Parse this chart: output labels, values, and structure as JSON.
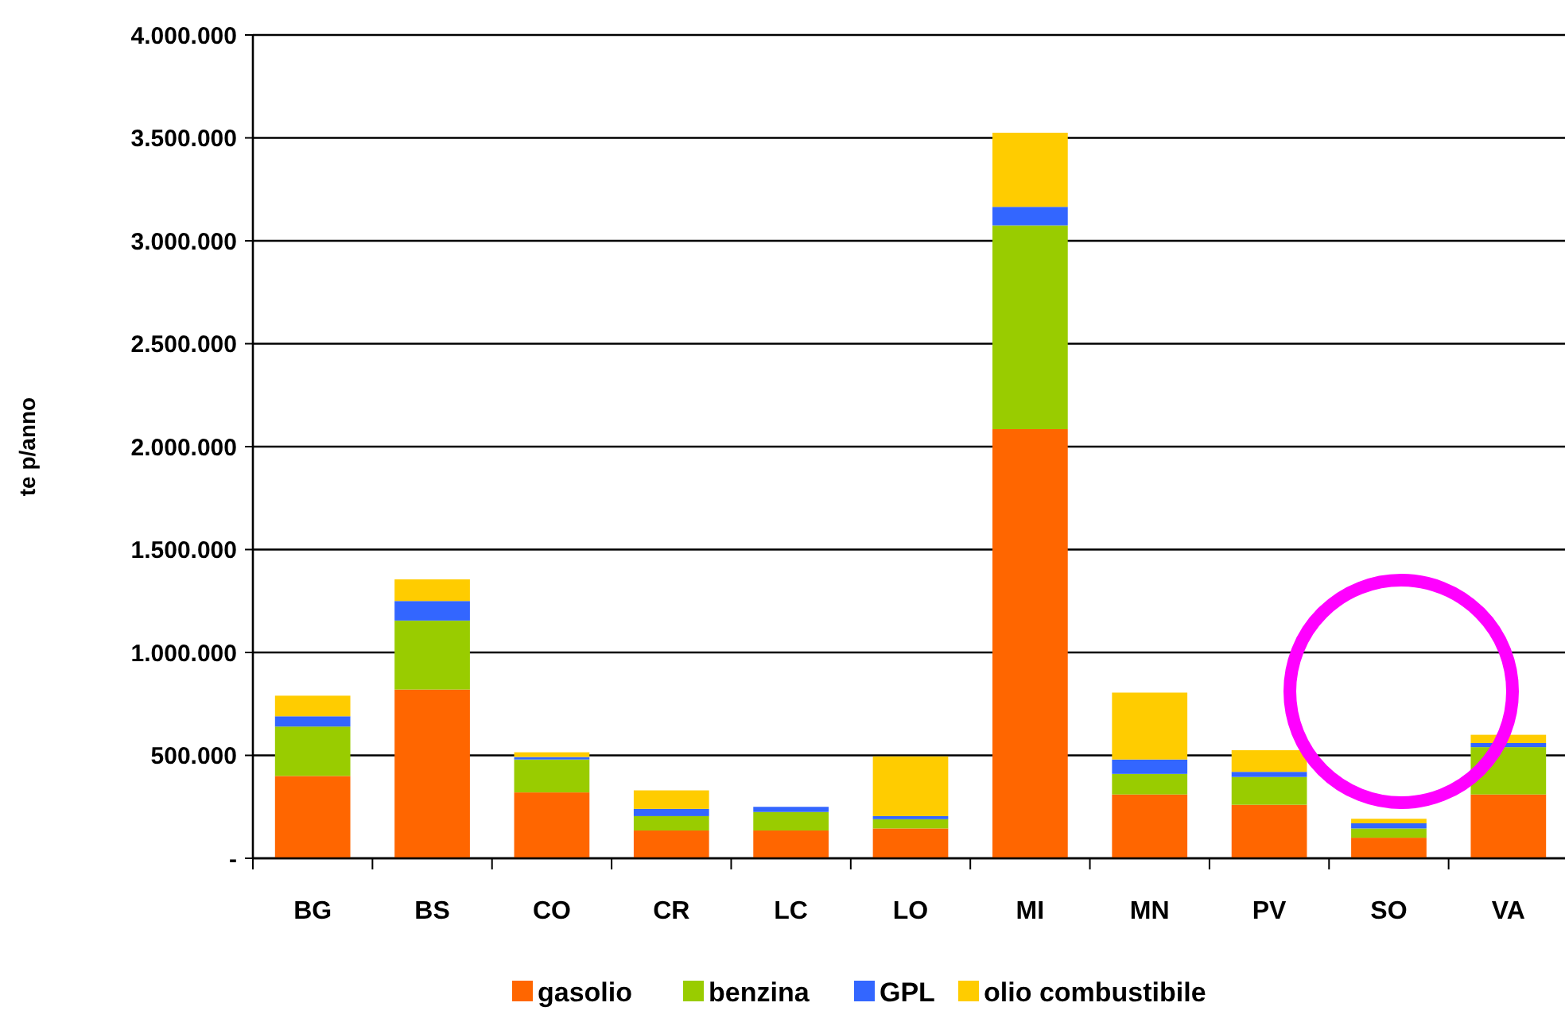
{
  "chart_data": {
    "type": "bar",
    "stacked": true,
    "ylabel": "te p/anno",
    "categories": [
      "BG",
      "BS",
      "CO",
      "CR",
      "LC",
      "LO",
      "MI",
      "MN",
      "PV",
      "SO",
      "VA"
    ],
    "series": [
      {
        "name": "gasolio",
        "color": "#ff6600",
        "values": [
          400000,
          820000,
          320000,
          135000,
          135000,
          145000,
          2085000,
          310000,
          260000,
          100000,
          310000
        ]
      },
      {
        "name": "benzina",
        "color": "#99cc00",
        "values": [
          240000,
          335000,
          160000,
          70000,
          90000,
          45000,
          990000,
          100000,
          135000,
          45000,
          230000
        ]
      },
      {
        "name": "GPL",
        "color": "#3366ff",
        "values": [
          50000,
          95000,
          12000,
          35000,
          25000,
          15000,
          90000,
          70000,
          25000,
          25000,
          20000
        ]
      },
      {
        "name": "olio combustibile",
        "color": "#ffcc00",
        "values": [
          100000,
          105000,
          23000,
          90000,
          0,
          290000,
          360000,
          325000,
          105000,
          22000,
          40000
        ]
      }
    ],
    "ylim": [
      0,
      4000000
    ],
    "yticks": [
      {
        "value": 0,
        "label": "-"
      },
      {
        "value": 500000,
        "label": "500.000"
      },
      {
        "value": 1000000,
        "label": "1.000.000"
      },
      {
        "value": 1500000,
        "label": "1.500.000"
      },
      {
        "value": 2000000,
        "label": "2.000.000"
      },
      {
        "value": 2500000,
        "label": "2.500.000"
      },
      {
        "value": 3000000,
        "label": "3.000.000"
      },
      {
        "value": 3500000,
        "label": "3.500.000"
      },
      {
        "value": 4000000,
        "label": "4.000.000"
      }
    ],
    "grid": "y",
    "legend": "bottom"
  }
}
